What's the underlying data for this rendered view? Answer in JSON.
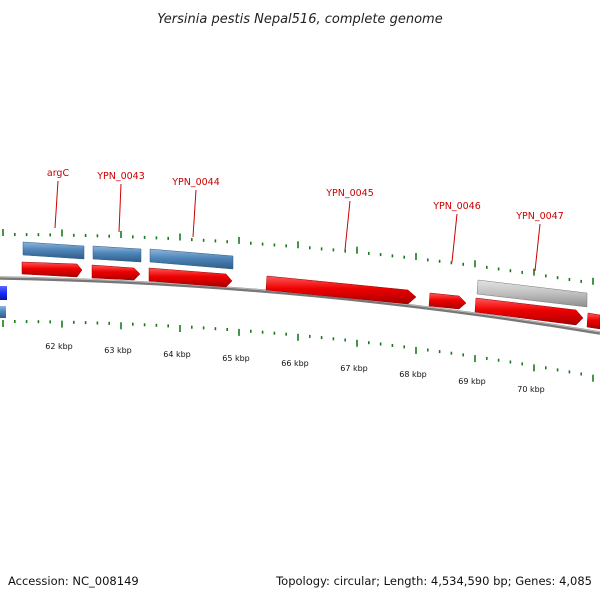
{
  "title": "Yersinia pestis Nepal516, complete genome",
  "footer": {
    "accession": "Accession: NC_008149",
    "summary": "Topology: circular; Length: 4,534,590 bp; Genes: 4,085"
  },
  "ticks": {
    "labels": [
      "62 kbp",
      "63 kbp",
      "64 kbp",
      "65 kbp",
      "66 kbp",
      "67 kbp",
      "68 kbp",
      "69 kbp",
      "70 kbp"
    ]
  },
  "genes": {
    "labels": [
      "argC",
      "YPN_0043",
      "YPN_0044",
      "YPN_0045",
      "YPN_0046",
      "YPN_0047"
    ]
  },
  "colors": {
    "cds": "#ee0000",
    "gene": "#4f86b9",
    "pseudo": "#bfbfbf",
    "rna": "#1a2bff",
    "backbone": "#777777",
    "tick": "#1a7a1a",
    "label": "#cc0000"
  }
}
